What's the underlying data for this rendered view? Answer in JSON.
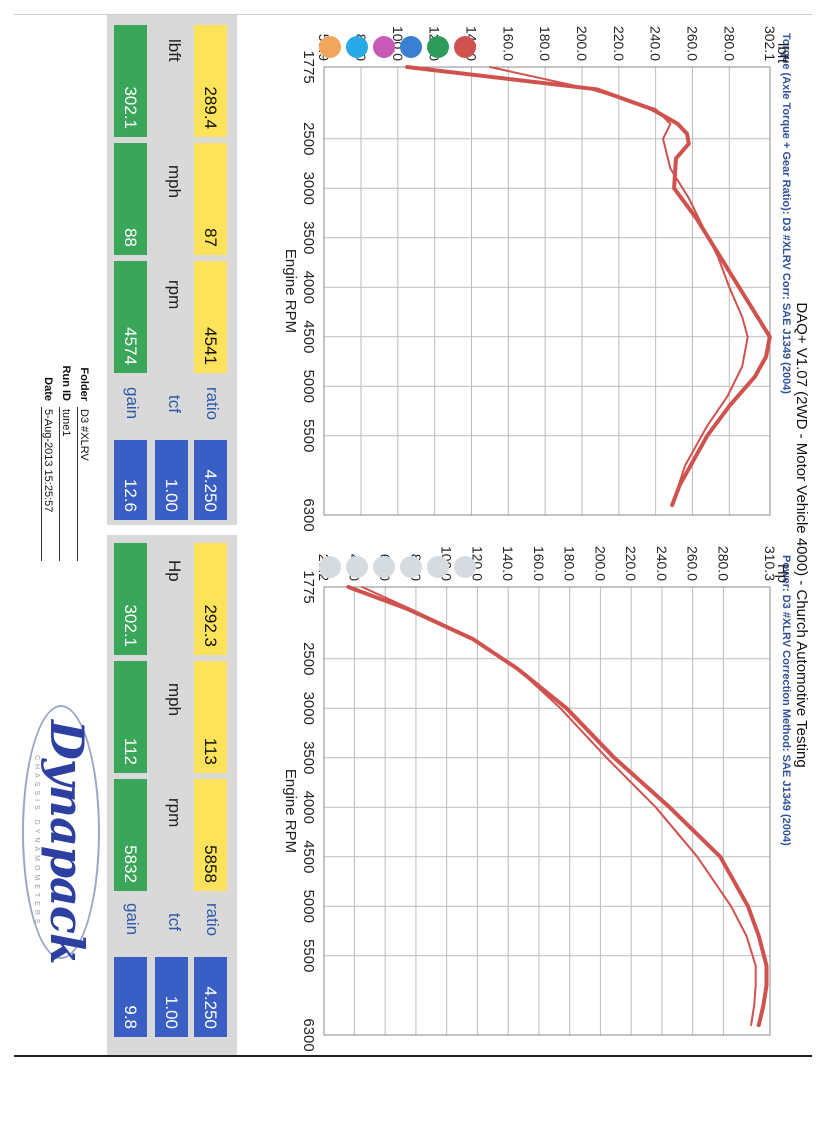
{
  "header": {
    "title": "DAQ+ V1.07 (2WD - Motor Vehicle 4000) - Church Automotive Testing",
    "torque_subtitle": "Torque (Axle Torque + Gear Ratio): D3 #XLRV   Corr: SAE J1349 (2004)",
    "power_subtitle": "Power: D3 #XLRV   Correction Method: SAE J1349 (2004)"
  },
  "colors": {
    "curve": "#d0524f",
    "legend_active": [
      "#f2a65c",
      "#28a9e8",
      "#c75bb5",
      "#3a7fd1",
      "#2e9a5a",
      "#d0524f"
    ],
    "legend_inactive": "#d6dbe0",
    "tile_yellow": "#fde25a",
    "tile_green": "#3aa65a",
    "tile_blue": "#3a5fc4"
  },
  "chart_data": [
    {
      "type": "line",
      "unit_label": "lbft",
      "xlabel": "Engine RPM",
      "x_ticks": [
        1775,
        2500,
        3000,
        3500,
        4000,
        4500,
        5000,
        5500,
        6300
      ],
      "y_ticks": [
        59.9,
        80.0,
        100.0,
        120.0,
        140.0,
        160.0,
        180.0,
        200.0,
        220.0,
        240.0,
        260.0,
        280.0,
        302.1
      ],
      "y_tick_labels": [
        "59.9",
        "80.0",
        "100.0",
        "120.0",
        "140.0",
        "160.0",
        "180.0",
        "200.0",
        "220.0",
        "240.0",
        "260.0",
        "280.0",
        "302.1"
      ],
      "xlim": [
        1775,
        6300
      ],
      "ylim": [
        59.9,
        302.1
      ],
      "grid": true,
      "series": [
        {
          "x": [
            1775,
            2000,
            2200,
            2350,
            2450,
            2550,
            2700,
            3000,
            3300,
            3600,
            3900,
            4200,
            4500,
            4700,
            4900,
            5200,
            5500,
            6000,
            6200
          ],
          "y": [
            105,
            208,
            238,
            252,
            257,
            258,
            251,
            250,
            262,
            272,
            282,
            292,
            302,
            300,
            294,
            280,
            268,
            253,
            249
          ]
        },
        {
          "x": [
            1775,
            2000,
            2200,
            2350,
            2500,
            2800,
            3100,
            3400,
            3700,
            4000,
            4300,
            4500,
            4800,
            5100,
            5400,
            5800,
            6200
          ],
          "y": [
            150,
            205,
            240,
            248,
            244,
            248,
            258,
            266,
            274,
            280,
            287,
            290,
            287,
            279,
            268,
            256,
            249
          ]
        }
      ]
    },
    {
      "type": "line",
      "unit_label": "Hp",
      "xlabel": "Engine RPM",
      "x_ticks": [
        1775,
        2500,
        3000,
        3500,
        4000,
        4500,
        5000,
        5500,
        6300
      ],
      "y_ticks": [
        20.2,
        40.0,
        60.0,
        80.0,
        100.0,
        120.0,
        140.0,
        160.0,
        180.0,
        200.0,
        220.0,
        240.0,
        260.0,
        280.0,
        310.3
      ],
      "y_tick_labels": [
        "20.2",
        "40.0",
        "60.0",
        "80.0",
        "100.0",
        "120.0",
        "140.0",
        "160.0",
        "180.0",
        "200.0",
        "220.0",
        "240.0",
        "260.0",
        "280.0",
        "310.3"
      ],
      "xlim": [
        1775,
        6300
      ],
      "ylim": [
        20.2,
        310.3
      ],
      "grid": true,
      "series": [
        {
          "x": [
            1775,
            2000,
            2300,
            2600,
            3000,
            3500,
            4000,
            4500,
            5000,
            5300,
            5600,
            5800,
            6000,
            6200
          ],
          "y": [
            36,
            75,
            117,
            146,
            178,
            209,
            245,
            278,
            296,
            303,
            308,
            308,
            306,
            303
          ]
        },
        {
          "x": [
            1775,
            2000,
            2300,
            2600,
            3000,
            3500,
            4000,
            4500,
            5000,
            5300,
            5600,
            5800,
            6000,
            6200
          ],
          "y": [
            45,
            77,
            118,
            146,
            174,
            204,
            236,
            263,
            285,
            295,
            301,
            301,
            300,
            298
          ]
        }
      ]
    }
  ],
  "left_panel": {
    "rows": [
      {
        "label": "ratio",
        "tiles": [
          "289.4",
          "87",
          "4541",
          "4.250"
        ]
      },
      {
        "label": "tcf",
        "tiles": [
          "",
          "",
          "",
          "1.00"
        ]
      },
      {
        "label": "gain",
        "tiles": [
          "302.1",
          "88",
          "4574",
          "12.6"
        ]
      }
    ],
    "units": [
      "lbft",
      "mph",
      "rpm"
    ]
  },
  "right_panel": {
    "rows": [
      {
        "label": "ratio",
        "tiles": [
          "292.3",
          "113",
          "5858",
          "4.250"
        ]
      },
      {
        "label": "tcf",
        "tiles": [
          "",
          "",
          "",
          "1.00"
        ]
      },
      {
        "label": "gain",
        "tiles": [
          "302.1",
          "112",
          "5832",
          "9.8"
        ]
      }
    ],
    "units": [
      "Hp",
      "mph",
      "rpm"
    ]
  },
  "meta": {
    "folder_label": "Folder",
    "folder_value": "D3 #XLRV",
    "runid_label": "Run ID",
    "runid_value": "tune1",
    "date_label": "Date",
    "date_value": "5-Aug-2013 15:25:57"
  },
  "logo": {
    "name": "Dynapack",
    "tagline": "CHASSIS DYNAMOMETERS"
  }
}
